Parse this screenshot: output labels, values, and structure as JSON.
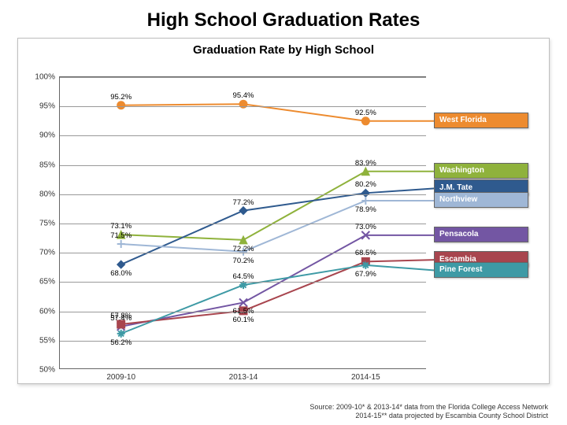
{
  "page_title": "High School Graduation Rates",
  "page_title_fontsize": 24,
  "chart": {
    "type": "line",
    "title": "Graduation Rate by High School",
    "title_fontsize": 15,
    "background_color": "#ffffff",
    "border_color": "#bfbfbf",
    "grid_color": "#999999",
    "axis_color": "#666666",
    "xlabels": [
      "2009-10",
      "2013-14",
      "2014-15"
    ],
    "x_positions_pct": [
      16.67,
      50.0,
      83.33
    ],
    "ylim": [
      50,
      100
    ],
    "ytick_step": 5,
    "yticks": [
      50,
      55,
      60,
      65,
      70,
      75,
      80,
      85,
      90,
      95,
      100
    ],
    "ytick_labels": [
      "50%",
      "55%",
      "60%",
      "65%",
      "70%",
      "75%",
      "80%",
      "85%",
      "90%",
      "95%",
      "100%"
    ],
    "tick_fontsize": 10,
    "line_width": 2,
    "marker_size": 5,
    "data_label_fontsize": 9.5,
    "series": [
      {
        "name": "West Florida",
        "color": "#ed8b2f",
        "marker": "circle",
        "values": [
          95.2,
          95.4,
          92.5
        ],
        "label_pos": [
          "above",
          "above",
          "above"
        ]
      },
      {
        "name": "Washington",
        "color": "#8fb23c",
        "marker": "triangle",
        "values": [
          73.1,
          72.2,
          83.9
        ],
        "label_pos": [
          "above",
          "below",
          "above"
        ]
      },
      {
        "name": "J.M. Tate",
        "color": "#2f5a8e",
        "marker": "diamond",
        "values": [
          68.0,
          77.2,
          80.2
        ],
        "label_pos": [
          "below",
          "above",
          "above"
        ]
      },
      {
        "name": "Northview",
        "color": "#9fb7d6",
        "marker": "plus",
        "values": [
          71.5,
          70.2,
          78.9
        ],
        "label_pos": [
          "above",
          "below",
          "below"
        ]
      },
      {
        "name": "Pensacola",
        "color": "#7356a3",
        "marker": "x",
        "values": [
          57.4,
          61.5,
          73.0
        ],
        "label_pos": [
          "above",
          "below",
          "above"
        ]
      },
      {
        "name": "Escambia",
        "color": "#a8454e",
        "marker": "square",
        "values": [
          57.8,
          60.1,
          68.5
        ],
        "label_pos": [
          "above",
          "below",
          "above"
        ]
      },
      {
        "name": "Pine Forest",
        "color": "#3e9aa5",
        "marker": "star",
        "values": [
          56.2,
          64.5,
          67.9
        ],
        "label_pos": [
          "below",
          "above",
          "below"
        ]
      }
    ],
    "legend": {
      "position": "right",
      "box_border_color": "#666666",
      "font_size": 10,
      "text_color": "#ffffff",
      "y_positions_value": [
        92.5,
        83.9,
        81.0,
        78.9,
        73.0,
        68.8,
        67.0
      ]
    }
  },
  "source": {
    "line1": "Source:  2009-10* & 2013-14* data from the Florida College Access Network",
    "line2": "2014-15** data projected by Escambia County School District",
    "fontsize": 9
  }
}
